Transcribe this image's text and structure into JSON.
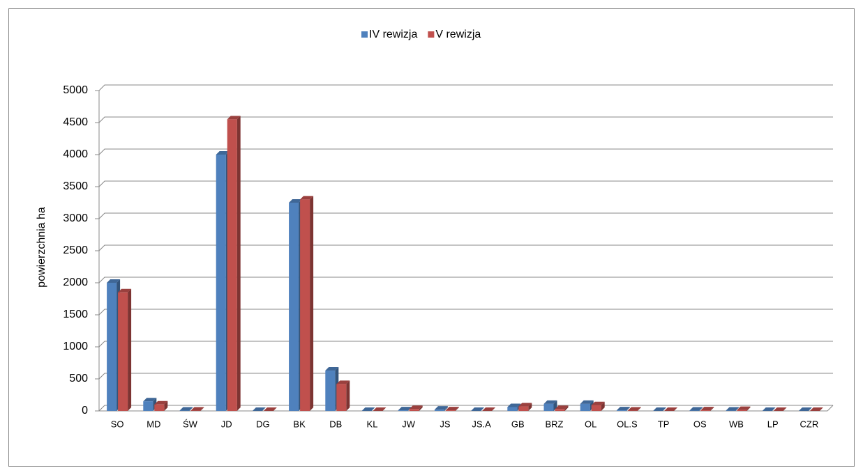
{
  "chart_data": {
    "type": "bar3d",
    "y_label": "powierzchnia ha",
    "categories": [
      "SO",
      "MD",
      "ŚW",
      "JD",
      "DG",
      "BK",
      "DB",
      "KL",
      "JW",
      "JS",
      "JS.A",
      "GB",
      "BRZ",
      "OL",
      "OL.S",
      "TP",
      "OS",
      "WB",
      "LP",
      "CZR"
    ],
    "series": [
      {
        "name": "IV rewizja",
        "color": "#4f81bd",
        "values": [
          2000,
          150,
          5,
          4000,
          0,
          3250,
          630,
          0,
          10,
          20,
          0,
          60,
          110,
          110,
          10,
          0,
          5,
          5,
          0,
          0
        ]
      },
      {
        "name": "V rewizja",
        "color": "#c0504d",
        "values": [
          1850,
          100,
          5,
          4550,
          0,
          3300,
          420,
          0,
          30,
          10,
          0,
          70,
          30,
          90,
          5,
          0,
          10,
          15,
          0,
          0
        ]
      }
    ],
    "ylim": [
      0,
      5000
    ],
    "yticks": [
      0,
      500,
      1000,
      1500,
      2000,
      2500,
      3000,
      3500,
      4000,
      4500,
      5000
    ],
    "grid": true,
    "legend": "top"
  }
}
